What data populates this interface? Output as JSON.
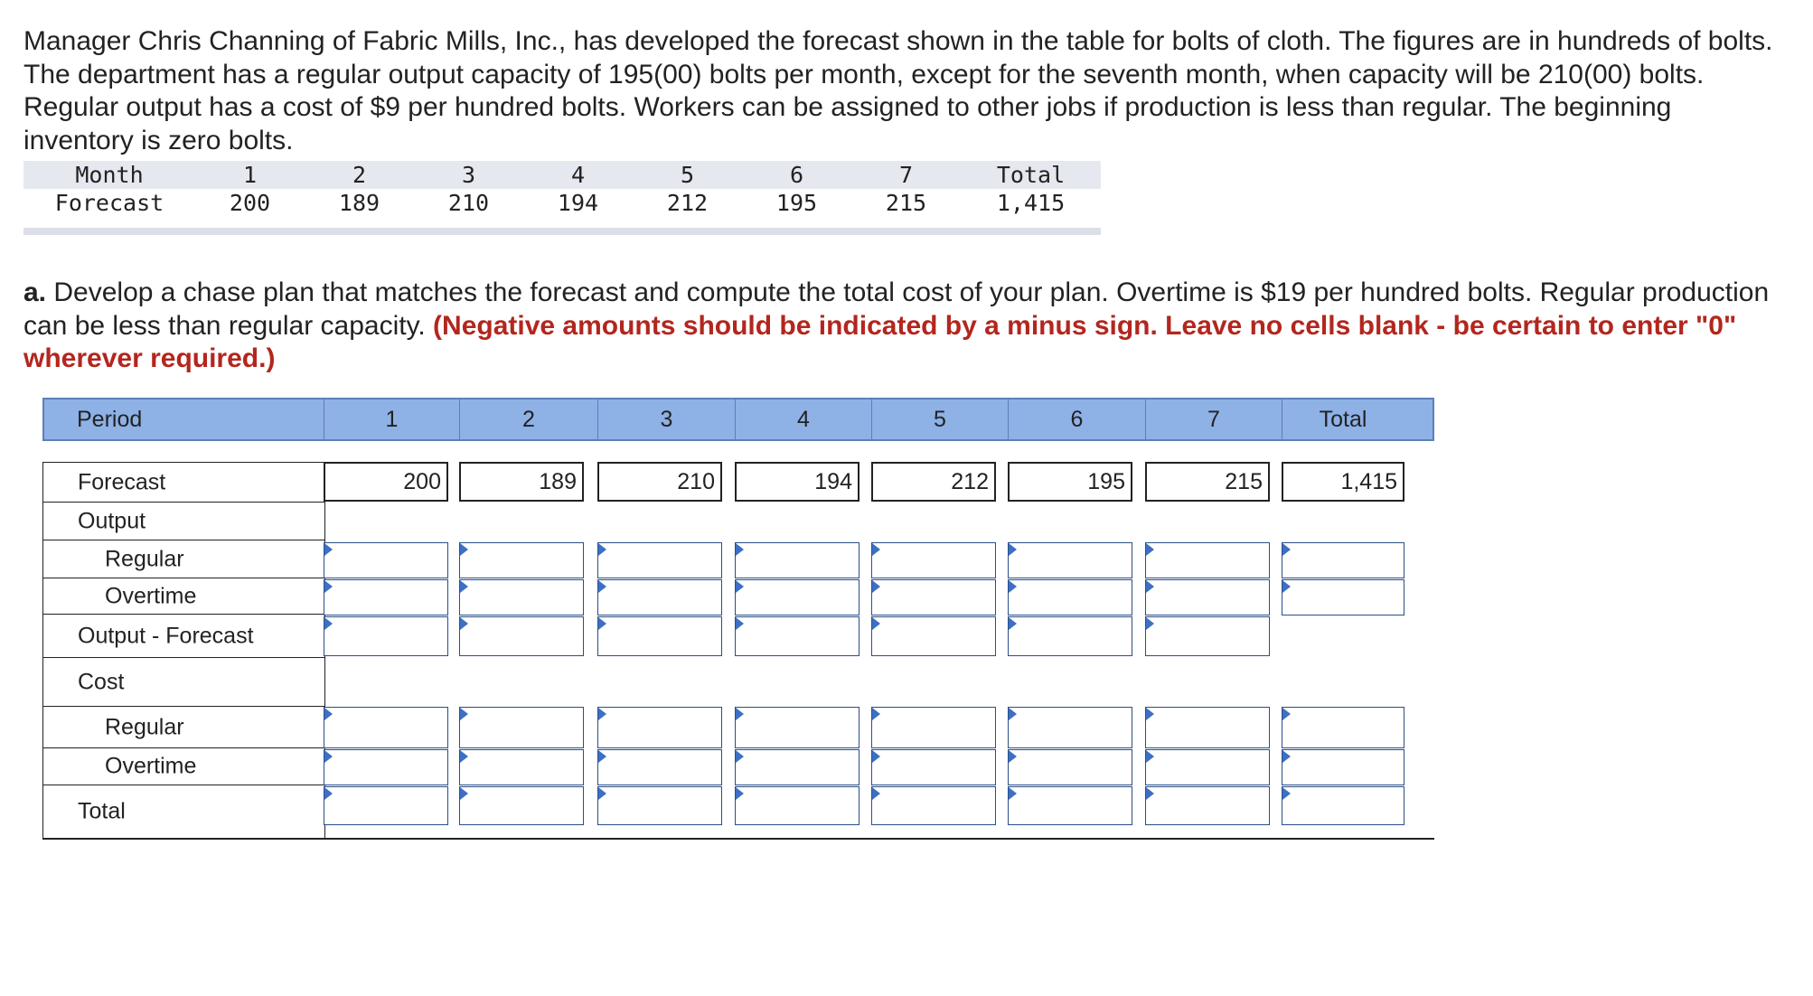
{
  "intro": {
    "text": "Manager Chris Channing of Fabric Mills, Inc., has developed the forecast shown in the table for bolts of cloth. The figures are in hundreds of bolts. The department has a regular output capacity of 195(00) bolts per month, except for the seventh month, when capacity will be 210(00) bolts. Regular output has a cost of $9 per hundred bolts. Workers can be assigned to other jobs if production is less than regular. The beginning inventory is zero bolts."
  },
  "forecast_table": {
    "row_labels": [
      "Month",
      "Forecast"
    ],
    "months": [
      "1",
      "2",
      "3",
      "4",
      "5",
      "6",
      "7"
    ],
    "total_label": "Total",
    "values": [
      "200",
      "189",
      "210",
      "194",
      "212",
      "195",
      "215"
    ],
    "total_value": "1,415"
  },
  "part_a": {
    "prefix": "a.",
    "text": " Develop a chase plan that matches the forecast and compute the total cost of your plan. Overtime is $19 per hundred bolts. Regular production can be less than regular capacity. ",
    "instruction": "(Negative amounts should be indicated by a minus sign. Leave no cells blank - be certain to enter \"0\" wherever required.)"
  },
  "grid": {
    "header_label": "Period",
    "periods": [
      "1",
      "2",
      "3",
      "4",
      "5",
      "6",
      "7"
    ],
    "total_label": "Total",
    "rows": {
      "forecast": "Forecast",
      "output": "Output",
      "regular": "Regular",
      "overtime": "Overtime",
      "output_minus_forecast": "Output - Forecast",
      "cost": "Cost",
      "cost_regular": "Regular",
      "cost_overtime": "Overtime",
      "total": "Total"
    },
    "forecast_values": [
      "200",
      "189",
      "210",
      "194",
      "212",
      "195",
      "215"
    ],
    "forecast_total": "1,415",
    "input_colors": {
      "border": "#2b4e87",
      "marker": "#3d6fc4",
      "header_bg": "#8eb1e6"
    }
  }
}
